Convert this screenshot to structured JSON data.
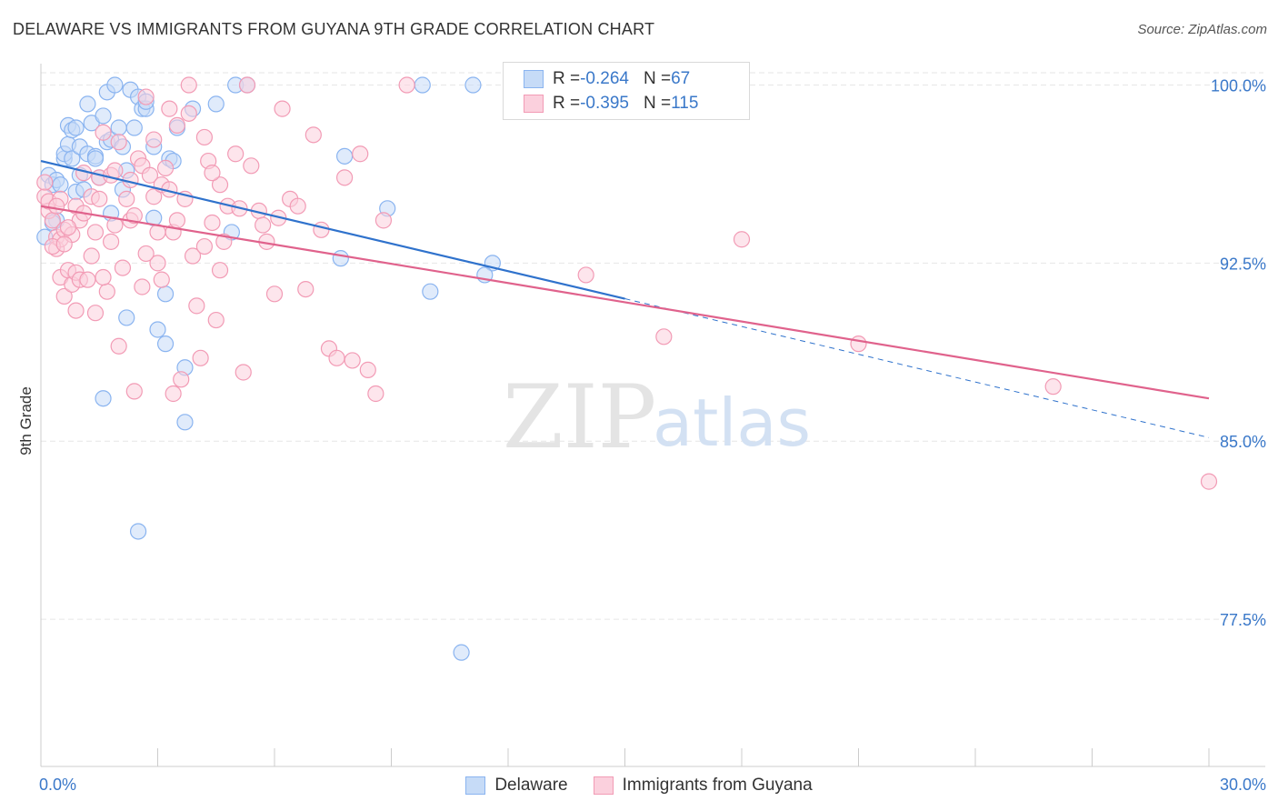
{
  "header": {
    "title": "DELAWARE VS IMMIGRANTS FROM GUYANA 9TH GRADE CORRELATION CHART",
    "source": "Source: ZipAtlas.com"
  },
  "watermark": {
    "part1": "ZIP",
    "part2": "atlas"
  },
  "legend_stats": [
    {
      "r_label": "R = ",
      "r_value": "-0.264",
      "n_label": "N = ",
      "n_value": "67",
      "color": "#8ab4f0",
      "fill": "#c6dbf7"
    },
    {
      "r_label": "R = ",
      "r_value": "-0.395",
      "n_label": "N = ",
      "n_value": "115",
      "color": "#f29bb5",
      "fill": "#fbd0dd"
    }
  ],
  "chart_data": {
    "type": "scatter",
    "title": "DELAWARE VS IMMIGRANTS FROM GUYANA 9TH GRADE CORRELATION CHART",
    "xlabel": "",
    "ylabel": "9th Grade",
    "xlim": [
      0,
      30
    ],
    "ylim": [
      71.3,
      100.9
    ],
    "x_tick_labels": [
      "0.0%",
      "30.0%"
    ],
    "y_ticks": [
      {
        "value": 100.0,
        "label": "100.0%"
      },
      {
        "value": 92.5,
        "label": "92.5%"
      },
      {
        "value": 85.0,
        "label": "85.0%"
      },
      {
        "value": 77.5,
        "label": "77.5%"
      }
    ],
    "grid": true,
    "legend_position": "bottom-center",
    "series": [
      {
        "name": "Delaware",
        "color": "#8ab4f0",
        "fill": "#c6dbf7",
        "trend_color": "#2f72cc",
        "trend": {
          "x0": 0,
          "y0": 96.8,
          "x1": 15.0,
          "y1": 91.0,
          "dashed_to_x": 30,
          "dashed_to_y": 85.15
        },
        "points": [
          [
            0.2,
            96.2
          ],
          [
            0.3,
            95.8
          ],
          [
            0.4,
            96.0
          ],
          [
            0.4,
            94.3
          ],
          [
            0.5,
            95.8
          ],
          [
            0.6,
            96.9
          ],
          [
            0.6,
            97.1
          ],
          [
            0.7,
            97.5
          ],
          [
            0.7,
            98.3
          ],
          [
            0.8,
            96.9
          ],
          [
            0.8,
            98.1
          ],
          [
            0.9,
            95.5
          ],
          [
            0.9,
            98.2
          ],
          [
            1.0,
            97.4
          ],
          [
            1.0,
            96.2
          ],
          [
            1.2,
            99.2
          ],
          [
            1.2,
            97.1
          ],
          [
            1.3,
            98.4
          ],
          [
            1.4,
            97.0
          ],
          [
            1.4,
            96.9
          ],
          [
            1.5,
            96.1
          ],
          [
            1.6,
            98.7
          ],
          [
            1.7,
            97.6
          ],
          [
            1.7,
            99.7
          ],
          [
            1.8,
            94.6
          ],
          [
            1.8,
            97.7
          ],
          [
            1.9,
            100.0
          ],
          [
            2.0,
            98.2
          ],
          [
            2.1,
            95.6
          ],
          [
            2.2,
            96.4
          ],
          [
            2.2,
            90.2
          ],
          [
            2.3,
            99.8
          ],
          [
            2.4,
            98.2
          ],
          [
            2.5,
            99.5
          ],
          [
            2.6,
            99.0
          ],
          [
            2.7,
            99.0
          ],
          [
            2.7,
            99.3
          ],
          [
            2.9,
            94.4
          ],
          [
            2.9,
            97.4
          ],
          [
            3.0,
            89.7
          ],
          [
            3.2,
            89.1
          ],
          [
            3.2,
            91.2
          ],
          [
            3.3,
            96.9
          ],
          [
            3.4,
            96.8
          ],
          [
            3.5,
            98.2
          ],
          [
            3.7,
            88.1
          ],
          [
            3.7,
            85.8
          ],
          [
            3.9,
            99.0
          ],
          [
            4.5,
            99.2
          ],
          [
            4.9,
            93.8
          ],
          [
            5.0,
            100.0
          ],
          [
            5.3,
            100.0
          ],
          [
            7.7,
            92.7
          ],
          [
            7.8,
            97.0
          ],
          [
            8.9,
            94.8
          ],
          [
            9.8,
            100.0
          ],
          [
            10.0,
            91.3
          ],
          [
            11.1,
            100.0
          ],
          [
            11.6,
            92.5
          ],
          [
            11.4,
            92.0
          ],
          [
            1.6,
            86.8
          ],
          [
            2.5,
            81.2
          ],
          [
            10.8,
            76.1
          ],
          [
            0.1,
            93.6
          ],
          [
            0.3,
            94.2
          ],
          [
            1.1,
            95.6
          ],
          [
            2.1,
            97.4
          ]
        ]
      },
      {
        "name": "Immigrants from Guyana",
        "color": "#f29bb5",
        "fill": "#fbd0dd",
        "trend_color": "#e0628c",
        "trend": {
          "x0": 0,
          "y0": 94.9,
          "x1": 30,
          "y1": 86.8
        },
        "points": [
          [
            0.1,
            95.3
          ],
          [
            0.2,
            94.7
          ],
          [
            0.2,
            95.1
          ],
          [
            0.3,
            94.3
          ],
          [
            0.4,
            93.6
          ],
          [
            0.4,
            93.1
          ],
          [
            0.5,
            91.9
          ],
          [
            0.5,
            93.5
          ],
          [
            0.6,
            93.9
          ],
          [
            0.6,
            91.1
          ],
          [
            0.7,
            92.2
          ],
          [
            0.8,
            91.6
          ],
          [
            0.8,
            93.7
          ],
          [
            0.9,
            94.9
          ],
          [
            0.9,
            92.1
          ],
          [
            1.0,
            94.3
          ],
          [
            1.0,
            91.8
          ],
          [
            1.1,
            94.6
          ],
          [
            1.2,
            91.8
          ],
          [
            1.3,
            92.8
          ],
          [
            1.3,
            95.3
          ],
          [
            1.4,
            90.4
          ],
          [
            1.5,
            95.2
          ],
          [
            1.5,
            96.1
          ],
          [
            1.6,
            98.0
          ],
          [
            1.7,
            91.3
          ],
          [
            1.8,
            93.4
          ],
          [
            1.8,
            96.2
          ],
          [
            1.9,
            94.1
          ],
          [
            2.0,
            97.6
          ],
          [
            2.1,
            92.3
          ],
          [
            2.2,
            95.2
          ],
          [
            2.3,
            94.3
          ],
          [
            2.4,
            94.5
          ],
          [
            2.4,
            87.1
          ],
          [
            2.5,
            96.9
          ],
          [
            2.6,
            96.6
          ],
          [
            2.6,
            91.5
          ],
          [
            2.7,
            99.5
          ],
          [
            2.8,
            96.2
          ],
          [
            2.9,
            95.3
          ],
          [
            3.0,
            92.5
          ],
          [
            3.0,
            93.8
          ],
          [
            3.1,
            95.8
          ],
          [
            3.2,
            96.5
          ],
          [
            3.3,
            95.6
          ],
          [
            3.3,
            99.0
          ],
          [
            3.4,
            93.8
          ],
          [
            3.5,
            98.3
          ],
          [
            3.6,
            87.6
          ],
          [
            3.7,
            95.2
          ],
          [
            3.8,
            100.0
          ],
          [
            3.9,
            92.8
          ],
          [
            4.0,
            90.7
          ],
          [
            4.1,
            88.5
          ],
          [
            4.2,
            93.2
          ],
          [
            4.3,
            96.8
          ],
          [
            4.4,
            94.2
          ],
          [
            4.5,
            90.1
          ],
          [
            4.6,
            95.8
          ],
          [
            4.7,
            93.4
          ],
          [
            4.8,
            94.9
          ],
          [
            5.0,
            97.1
          ],
          [
            5.1,
            94.8
          ],
          [
            5.2,
            87.9
          ],
          [
            5.4,
            96.6
          ],
          [
            5.6,
            94.7
          ],
          [
            5.8,
            93.4
          ],
          [
            6.0,
            91.2
          ],
          [
            6.2,
            99.0
          ],
          [
            6.4,
            95.2
          ],
          [
            6.6,
            94.9
          ],
          [
            6.8,
            91.4
          ],
          [
            7.0,
            97.9
          ],
          [
            7.2,
            93.9
          ],
          [
            7.4,
            88.9
          ],
          [
            7.6,
            88.5
          ],
          [
            7.8,
            96.1
          ],
          [
            8.0,
            88.4
          ],
          [
            8.2,
            97.1
          ],
          [
            8.4,
            88.0
          ],
          [
            8.6,
            87.0
          ],
          [
            8.8,
            94.3
          ],
          [
            9.4,
            100.0
          ],
          [
            14.0,
            92.0
          ],
          [
            16.0,
            89.4
          ],
          [
            18.0,
            93.5
          ],
          [
            21.0,
            89.1
          ],
          [
            26.0,
            87.3
          ],
          [
            30.0,
            83.3
          ],
          [
            0.1,
            95.9
          ],
          [
            0.3,
            93.2
          ],
          [
            0.5,
            95.2
          ],
          [
            0.7,
            94.0
          ],
          [
            1.1,
            96.3
          ],
          [
            1.4,
            93.8
          ],
          [
            1.9,
            96.4
          ],
          [
            2.3,
            96.0
          ],
          [
            2.7,
            92.9
          ],
          [
            3.1,
            91.8
          ],
          [
            3.5,
            94.3
          ],
          [
            3.8,
            98.8
          ],
          [
            4.2,
            97.8
          ],
          [
            4.6,
            92.2
          ],
          [
            5.3,
            100.0
          ],
          [
            5.7,
            94.1
          ],
          [
            6.1,
            94.4
          ],
          [
            0.4,
            94.9
          ],
          [
            0.9,
            90.5
          ],
          [
            1.6,
            91.9
          ],
          [
            2.0,
            89.0
          ],
          [
            2.9,
            97.7
          ],
          [
            3.4,
            87.0
          ],
          [
            4.4,
            96.3
          ],
          [
            0.6,
            93.3
          ]
        ]
      }
    ]
  },
  "legend_bottom": [
    {
      "label": "Delaware",
      "color": "#8ab4f0",
      "fill": "#c6dbf7"
    },
    {
      "label": "Immigrants from Guyana",
      "color": "#f29bb5",
      "fill": "#fbd0dd"
    }
  ]
}
